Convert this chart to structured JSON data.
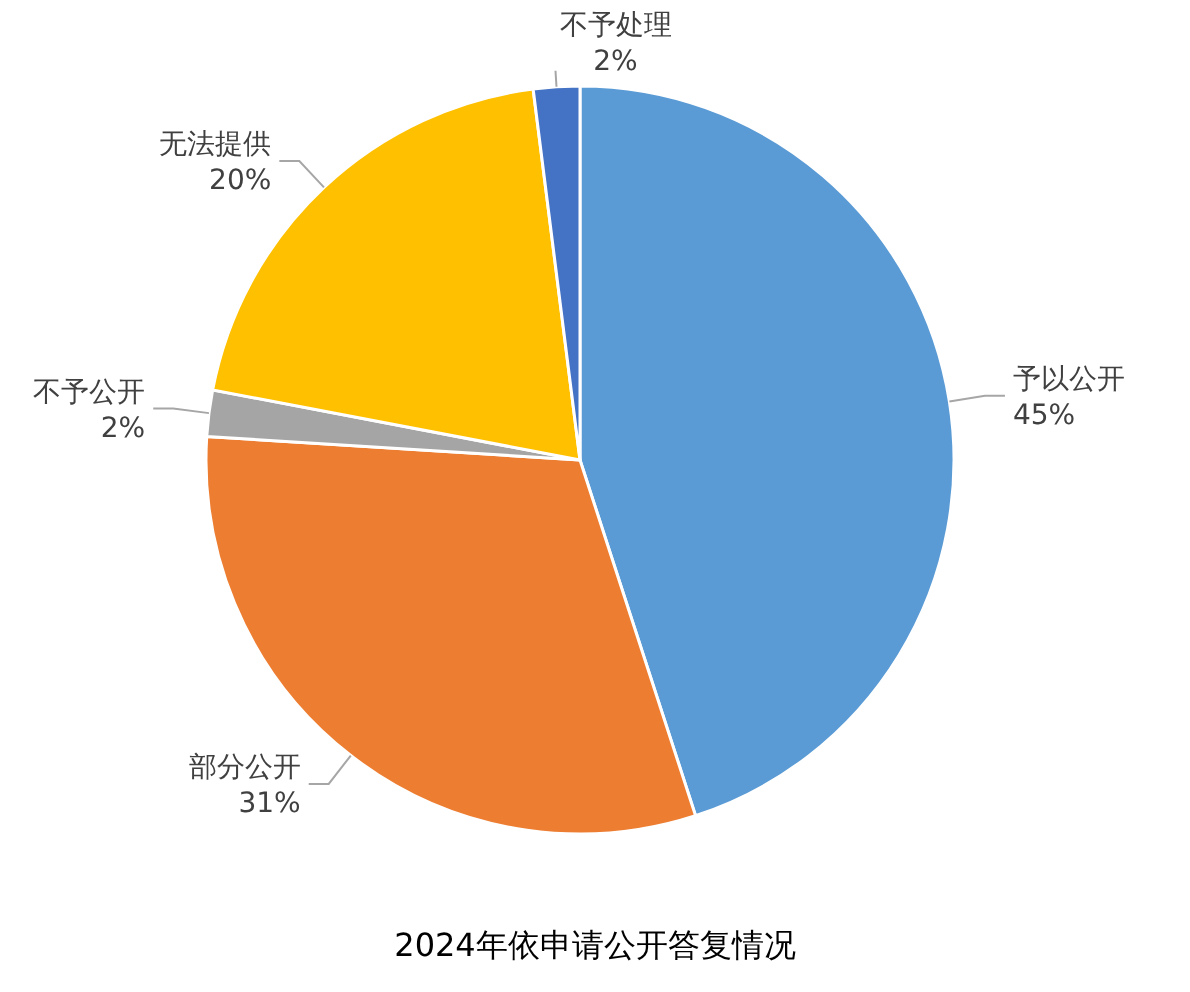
{
  "chart_data": {
    "type": "pie",
    "title": "2024年依申请公开答复情况",
    "categories": [
      "予以公开",
      "部分公开",
      "不予公开",
      "无法提供",
      "不予处理"
    ],
    "values": [
      45,
      31,
      2,
      20,
      2
    ],
    "value_labels": [
      "45%",
      "31%",
      "2%",
      "20%",
      "2%"
    ],
    "colors": [
      "#5b9bd5",
      "#ed7d31",
      "#a5a5a5",
      "#ffc000",
      "#4472c4"
    ],
    "legend": false
  }
}
